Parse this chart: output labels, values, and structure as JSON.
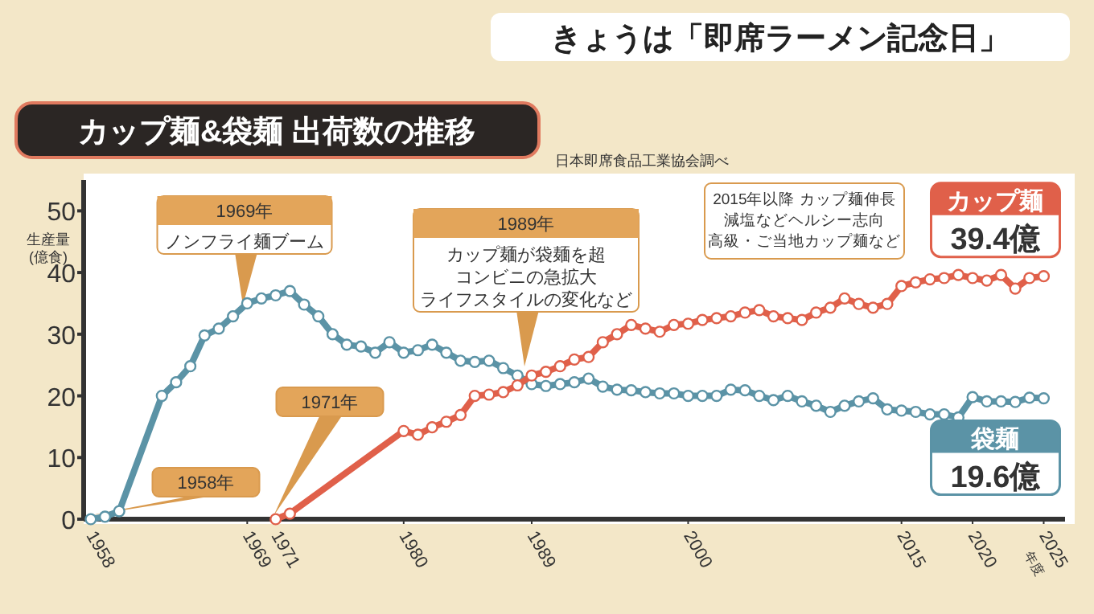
{
  "chart_data": {
    "type": "line",
    "title": "きょうは「即席ラーメン記念日」",
    "subtitle": "カップ麺&袋麺 出荷数の推移",
    "ylabel": "生産量\n(億食)",
    "xlabel": "年度",
    "x": [
      1958,
      1959,
      1960,
      1961,
      1962,
      1963,
      1964,
      1965,
      1966,
      1967,
      1968,
      1969,
      1970,
      1971,
      1972,
      1973,
      1974,
      1975,
      1976,
      1977,
      1978,
      1979,
      1980,
      1981,
      1982,
      1983,
      1984,
      1985,
      1986,
      1987,
      1988,
      1989,
      1990,
      1991,
      1992,
      1993,
      1994,
      1995,
      1996,
      1997,
      1998,
      1999,
      2000,
      2001,
      2002,
      2003,
      2004,
      2005,
      2006,
      2007,
      2008,
      2009,
      2010,
      2011,
      2012,
      2013,
      2014,
      2015,
      2016,
      2017,
      2018,
      2019,
      2020,
      2021,
      2022,
      2023,
      2024,
      2025
    ],
    "series": [
      {
        "name": "袋麺",
        "color": "#5b93a6",
        "values": [
          0,
          0.4,
          1.3,
          null,
          null,
          20,
          22.2,
          24.8,
          29.8,
          30.9,
          32.9,
          35,
          35.8,
          36.3,
          37,
          34.8,
          32.9,
          30,
          28.3,
          28,
          27,
          28.7,
          27,
          27.4,
          28.3,
          27,
          25.7,
          25.5,
          25.7,
          24.5,
          23.3,
          21.9,
          21.6,
          21.9,
          22.2,
          22.8,
          21.5,
          21,
          20.9,
          20.6,
          20.4,
          20.4,
          20,
          20,
          20,
          21,
          20.9,
          20,
          19.3,
          20,
          19.1,
          18.4,
          17.4,
          18.4,
          19.1,
          19.6,
          17.8,
          17.6,
          17.4,
          17,
          17,
          16.5,
          19.8,
          19.1,
          19.1,
          19,
          19.7,
          19.6
        ],
        "value_labels": [
          null,
          null,
          null,
          null,
          null,
          null,
          null,
          null,
          null,
          null,
          null,
          null,
          null,
          null,
          null,
          null,
          null,
          null,
          null,
          null,
          null,
          null,
          null,
          null,
          null,
          null,
          null,
          null,
          null,
          null,
          null,
          null,
          null,
          null,
          null,
          null,
          null,
          null,
          null,
          null,
          null,
          null,
          null,
          null,
          null,
          null,
          null,
          null,
          null,
          null,
          null,
          null,
          null,
          null,
          null,
          null,
          null,
          null,
          null,
          null,
          null,
          null,
          null,
          null,
          null,
          null,
          null,
          "19.6億"
        ]
      },
      {
        "name": "カップ麺",
        "color": "#e0604a",
        "values": [
          null,
          null,
          null,
          null,
          null,
          null,
          null,
          null,
          null,
          null,
          null,
          null,
          null,
          0,
          0.9,
          null,
          null,
          null,
          null,
          null,
          null,
          null,
          14.3,
          13.7,
          14.9,
          15.8,
          16.9,
          20,
          20.2,
          20.6,
          21.7,
          23.3,
          23.9,
          24.8,
          25.9,
          26.3,
          28.7,
          30,
          31.5,
          30.9,
          30.4,
          31.5,
          31.7,
          32.3,
          32.6,
          32.9,
          33.5,
          33.9,
          32.9,
          32.6,
          32.3,
          33.5,
          34.3,
          35.8,
          34.9,
          34.3,
          34.9,
          37.8,
          38.4,
          38.9,
          39.1,
          39.6,
          39.1,
          38.7,
          39.6,
          37.4,
          39.1,
          39.4
        ],
        "value_labels": [
          null,
          null,
          null,
          null,
          null,
          null,
          null,
          null,
          null,
          null,
          null,
          null,
          null,
          null,
          null,
          null,
          null,
          null,
          null,
          null,
          null,
          null,
          null,
          null,
          null,
          null,
          null,
          null,
          null,
          null,
          null,
          null,
          null,
          null,
          null,
          null,
          null,
          null,
          null,
          null,
          null,
          null,
          null,
          null,
          null,
          null,
          null,
          null,
          null,
          null,
          null,
          null,
          null,
          null,
          null,
          null,
          null,
          null,
          null,
          null,
          null,
          null,
          null,
          null,
          null,
          null,
          null,
          "39.4億"
        ]
      }
    ],
    "xlim": [
      1957.5,
      2026.5
    ],
    "xticks": [
      1958,
      1969,
      1971,
      1980,
      1989,
      2000,
      2015,
      2020,
      2025
    ],
    "ylim": [
      0,
      55
    ],
    "yticks": [
      0,
      10,
      20,
      30,
      40,
      50
    ],
    "grid": false,
    "marker": "circle",
    "line_style": "solid",
    "annotations": [
      "1958年",
      "1969年",
      "ノンフライ麺ブーム",
      "1971年",
      "1989年",
      "カップ麺が袋麺を超",
      "コンビニの急拡大",
      "ライフスタイルの変化など",
      "2015年以降 カップ麺伸長",
      "減塩などヘルシー志向",
      "高級・ご当地カップ麺など",
      "日本即席食品工業協会調べ"
    ]
  }
}
